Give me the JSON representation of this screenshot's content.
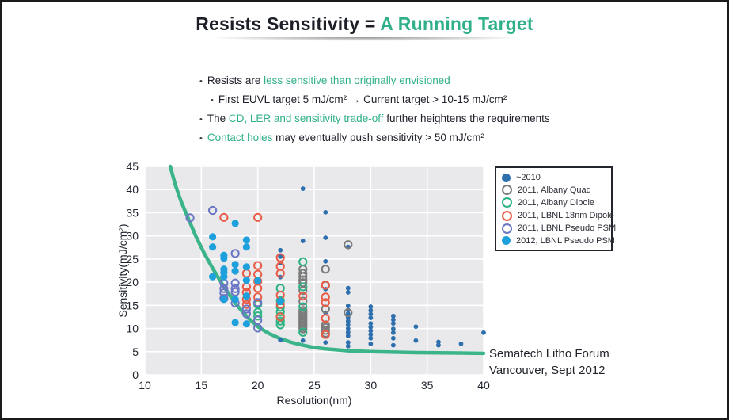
{
  "slide": {
    "title": {
      "prefix": "Resists Sensitivity = ",
      "accent": "A Running Target"
    },
    "bullets": [
      {
        "level": 1,
        "segments": [
          {
            "text": "Resists are ",
            "style": "dark"
          },
          {
            "text": "less sensitive than originally envisioned",
            "style": "accent"
          }
        ]
      },
      {
        "level": 2,
        "segments": [
          {
            "text": "First EUVL target 5 mJ/cm² → Current target > 10-15 mJ/cm²",
            "style": "dark"
          }
        ]
      },
      {
        "level": 1,
        "segments": [
          {
            "text": "The ",
            "style": "dark"
          },
          {
            "text": "CD, LER and sensitivity trade-off",
            "style": "accent"
          },
          {
            "text": " further heightens the requirements",
            "style": "dark"
          }
        ]
      },
      {
        "level": 1,
        "segments": [
          {
            "text": "Contact holes",
            "style": "accent"
          },
          {
            "text": " may eventually push sensitivity > 50 mJ/cm²",
            "style": "dark"
          }
        ]
      }
    ],
    "footer": {
      "line1": "Sematech Litho Forum",
      "line2": "Vancouver, Sept 2012"
    }
  },
  "colors": {
    "accent_teal": "#2fb08a",
    "curve_green": "#3bb489",
    "dark_text": "#20222c",
    "plot_background": "#e9e9eb",
    "gridline": "#ffffff",
    "slide_border": "#1b1b1b"
  },
  "chart_data": {
    "type": "scatter",
    "xlabel": "Resolution(nm)",
    "ylabel": "Sensitivity(mJ/cm²)",
    "xlim": [
      10,
      40
    ],
    "ylim": [
      0,
      45
    ],
    "xticks": [
      10,
      15,
      20,
      25,
      30,
      35,
      40
    ],
    "yticks": [
      0,
      5,
      10,
      15,
      20,
      25,
      30,
      35,
      40,
      45
    ],
    "grid": true,
    "legend_position": "outside-right-top",
    "series": [
      {
        "name": "~2010",
        "marker": "filled",
        "color": "#2e6fae",
        "size": 2.9,
        "points": [
          [
            22,
            26.9
          ],
          [
            22,
            25.5
          ],
          [
            22,
            24.1
          ],
          [
            22,
            21.1
          ],
          [
            22,
            7.5
          ],
          [
            24,
            40.2
          ],
          [
            24,
            28.9
          ],
          [
            24,
            7.4
          ],
          [
            26,
            35.1
          ],
          [
            26,
            29.6
          ],
          [
            26,
            24.5
          ],
          [
            26,
            18.5
          ],
          [
            26,
            13.4
          ],
          [
            26,
            7.0
          ],
          [
            28,
            27.6
          ],
          [
            28,
            18.7
          ],
          [
            28,
            17.8
          ],
          [
            28,
            14.9
          ],
          [
            28,
            14.0
          ],
          [
            28,
            13.2
          ],
          [
            28,
            12.4
          ],
          [
            28,
            11.6
          ],
          [
            28,
            10.8
          ],
          [
            28,
            10.0
          ],
          [
            28,
            9.2
          ],
          [
            28,
            8.4
          ],
          [
            28,
            7.0
          ],
          [
            28,
            6.2
          ],
          [
            30,
            14.7
          ],
          [
            30,
            13.9
          ],
          [
            30,
            13.1
          ],
          [
            30,
            12.3
          ],
          [
            30,
            11.1
          ],
          [
            30,
            10.3
          ],
          [
            30,
            9.5
          ],
          [
            30,
            8.7
          ],
          [
            30,
            7.9
          ],
          [
            30,
            6.7
          ],
          [
            32,
            12.7
          ],
          [
            32,
            11.9
          ],
          [
            32,
            11.1
          ],
          [
            32,
            9.9
          ],
          [
            32,
            9.1
          ],
          [
            32,
            7.9
          ],
          [
            32,
            6.4
          ],
          [
            34,
            10.4
          ],
          [
            34,
            7.4
          ],
          [
            36,
            7.1
          ],
          [
            36,
            6.4
          ],
          [
            38,
            6.7
          ],
          [
            40,
            9.1
          ]
        ]
      },
      {
        "name": "2011, Albany Quad",
        "marker": "open",
        "color": "#7b7b7b",
        "size": 4.6,
        "points": [
          [
            24,
            22.8
          ],
          [
            24,
            21.9
          ],
          [
            24,
            21.2
          ],
          [
            24,
            20.5
          ],
          [
            24,
            19.9
          ],
          [
            24,
            18.2
          ],
          [
            24,
            15.9
          ],
          [
            24,
            13.9
          ],
          [
            24,
            13.5
          ],
          [
            24,
            13.1
          ],
          [
            24,
            12.7
          ],
          [
            24,
            12.3
          ],
          [
            24,
            11.9
          ],
          [
            24,
            11.5
          ],
          [
            24,
            11.1
          ],
          [
            24,
            10.7
          ],
          [
            24,
            10.3
          ],
          [
            24,
            9.9
          ],
          [
            26,
            22.8
          ],
          [
            26,
            19.3
          ],
          [
            26,
            14.2
          ],
          [
            26,
            10.8
          ],
          [
            26,
            10.2
          ],
          [
            26,
            9.6
          ],
          [
            26,
            9.0
          ],
          [
            28,
            28.1
          ],
          [
            28,
            13.4
          ]
        ]
      },
      {
        "name": "2011, Albany Dipole",
        "marker": "open",
        "color": "#2bb282",
        "size": 4.6,
        "points": [
          [
            20,
            15.2
          ],
          [
            20,
            13.5
          ],
          [
            20,
            12.7
          ],
          [
            22,
            18.7
          ],
          [
            22,
            16.0
          ],
          [
            22,
            14.6
          ],
          [
            22,
            13.6
          ],
          [
            22,
            12.6
          ],
          [
            22,
            11.6
          ],
          [
            22,
            10.8
          ],
          [
            24,
            24.4
          ],
          [
            24,
            19.0
          ],
          [
            24,
            14.7
          ],
          [
            24,
            9.2
          ]
        ]
      },
      {
        "name": "2011, LBNL 18nm Dipole",
        "marker": "open",
        "color": "#e85c47",
        "size": 4.6,
        "points": [
          [
            17,
            34.0
          ],
          [
            20,
            34.0
          ],
          [
            19,
            21.9
          ],
          [
            19,
            19.0
          ],
          [
            19,
            17.8
          ],
          [
            19,
            16.3
          ],
          [
            19,
            15.2
          ],
          [
            20,
            23.6
          ],
          [
            20,
            21.7
          ],
          [
            20,
            20.2
          ],
          [
            20,
            18.7
          ],
          [
            20,
            16.8
          ],
          [
            22,
            25.3
          ],
          [
            22,
            23.4
          ],
          [
            22,
            21.9
          ],
          [
            22,
            17.2
          ],
          [
            22,
            15.2
          ],
          [
            22,
            12.5
          ],
          [
            24,
            17.0
          ],
          [
            26,
            19.4
          ],
          [
            26,
            16.8
          ],
          [
            26,
            15.6
          ],
          [
            26,
            12.2
          ],
          [
            26,
            8.7
          ]
        ]
      },
      {
        "name": "2011, LBNL Pseudo PSM",
        "marker": "open",
        "color": "#6b76c4",
        "size": 4.6,
        "points": [
          [
            14,
            33.9
          ],
          [
            16,
            35.5
          ],
          [
            18,
            26.2
          ],
          [
            17,
            19.8
          ],
          [
            17,
            18.6
          ],
          [
            17,
            17.7
          ],
          [
            17,
            16.5
          ],
          [
            18,
            19.8
          ],
          [
            18,
            18.6
          ],
          [
            18,
            17.9
          ],
          [
            18,
            15.5
          ],
          [
            19,
            14.2
          ],
          [
            19,
            13.2
          ],
          [
            20,
            15.6
          ],
          [
            20,
            11.8
          ],
          [
            20,
            10.1
          ]
        ]
      },
      {
        "name": "2012, LBNL Pseudo PSM",
        "marker": "filled",
        "color": "#1da0dc",
        "size": 4.6,
        "points": [
          [
            16,
            29.8
          ],
          [
            16,
            27.6
          ],
          [
            16,
            21.2
          ],
          [
            17,
            25.8
          ],
          [
            17,
            25.2
          ],
          [
            17,
            22.8
          ],
          [
            17,
            22.1
          ],
          [
            17,
            21.2
          ],
          [
            17,
            16.3
          ],
          [
            18,
            32.7
          ],
          [
            18,
            23.8
          ],
          [
            18,
            22.4
          ],
          [
            18,
            16.3
          ],
          [
            18,
            11.3
          ],
          [
            19,
            29.1
          ],
          [
            19,
            27.6
          ],
          [
            19,
            23.3
          ],
          [
            19,
            20.4
          ],
          [
            19,
            17.0
          ],
          [
            19,
            11.0
          ],
          [
            20,
            20.3
          ],
          [
            22,
            15.9
          ]
        ]
      }
    ],
    "curve": {
      "name": "resist-target-curve",
      "color": "#3bb489",
      "stroke_width": 4.5,
      "points": [
        [
          12.25,
          45
        ],
        [
          12.7,
          41
        ],
        [
          13.2,
          37.5
        ],
        [
          13.8,
          34
        ],
        [
          14.5,
          30
        ],
        [
          15.2,
          26.5
        ],
        [
          16,
          23
        ],
        [
          17,
          19
        ],
        [
          18,
          15.5
        ],
        [
          19,
          12.6
        ],
        [
          20,
          10.4
        ],
        [
          21,
          8.9
        ],
        [
          22,
          7.8
        ],
        [
          23,
          7.0
        ],
        [
          24,
          6.4
        ],
        [
          25,
          5.9
        ],
        [
          26,
          5.6
        ],
        [
          28,
          5.2
        ],
        [
          30,
          5.0
        ],
        [
          32,
          4.9
        ],
        [
          34,
          4.8
        ],
        [
          36,
          4.75
        ],
        [
          38,
          4.7
        ],
        [
          40,
          4.65
        ]
      ]
    }
  }
}
